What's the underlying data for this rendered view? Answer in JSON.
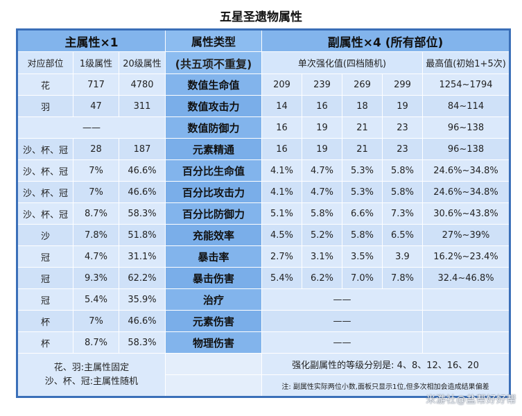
{
  "title": "五星圣遗物属性",
  "header": {
    "main_attr": "主属性×1",
    "type_line1": "属性类型",
    "type_line2": "(共五项不重复)",
    "sub_attr": "副属性×4 (所有部位)",
    "slot": "对应部位",
    "lv1": "1级属性",
    "lv20": "20级属性",
    "single_roll": "单次强化值(四档随机)",
    "max_value": "最高值(初始1+5次)"
  },
  "rows": [
    {
      "slot": "花",
      "lv1": "717",
      "lv20": "4780",
      "name": "数值生命值",
      "r1": "209",
      "r2": "239",
      "r3": "269",
      "r4": "299",
      "max": "1254~1794"
    },
    {
      "slot": "羽",
      "lv1": "47",
      "lv20": "311",
      "name": "数值攻击力",
      "r1": "14",
      "r2": "16",
      "r3": "18",
      "r4": "19",
      "max": "84~114"
    },
    {
      "merged": "——",
      "name": "数值防御力",
      "r1": "16",
      "r2": "19",
      "r3": "21",
      "r4": "23",
      "max": "96~138"
    },
    {
      "slot": "沙、杯、冠",
      "lv1": "28",
      "lv20": "187",
      "name": "元素精通",
      "r1": "16",
      "r2": "19",
      "r3": "21",
      "r4": "23",
      "max": "96~138"
    },
    {
      "slot": "沙、杯、冠",
      "lv1": "7%",
      "lv20": "46.6%",
      "name": "百分比生命值",
      "r1": "4.1%",
      "r2": "4.7%",
      "r3": "5.3%",
      "r4": "5.8%",
      "max": "24.6%~34.8%"
    },
    {
      "slot": "沙、杯、冠",
      "lv1": "7%",
      "lv20": "46.6%",
      "name": "百分比攻击力",
      "r1": "4.1%",
      "r2": "4.7%",
      "r3": "5.3%",
      "r4": "5.8%",
      "max": "24.6%~34.8%"
    },
    {
      "slot": "沙、杯、冠",
      "lv1": "8.7%",
      "lv20": "58.3%",
      "name": "百分比防御力",
      "r1": "5.1%",
      "r2": "5.8%",
      "r3": "6.6%",
      "r4": "7.3%",
      "max": "30.6%~43.8%"
    },
    {
      "slot": "沙",
      "lv1": "7.8%",
      "lv20": "51.8%",
      "name": "充能效率",
      "r1": "4.5%",
      "r2": "5.2%",
      "r3": "5.8%",
      "r4": "6.5%",
      "max": "27%~39%"
    },
    {
      "slot": "冠",
      "lv1": "4.7%",
      "lv20": "31.1%",
      "name": "暴击率",
      "r1": "2.7%",
      "r2": "3.1%",
      "r3": "3.5%",
      "r4": "3.9",
      "max": "16.2%~23.4%"
    },
    {
      "slot": "冠",
      "lv1": "9.3%",
      "lv20": "62.2%",
      "name": "暴击伤害",
      "r1": "5.4%",
      "r2": "6.2%",
      "r3": "7.0%",
      "r4": "7.8%",
      "max": "32.4~46.8%"
    },
    {
      "slot": "冠",
      "lv1": "5.4%",
      "lv20": "35.9%",
      "name": "治疗",
      "subMerged": "——"
    },
    {
      "slot": "杯",
      "lv1": "7%",
      "lv20": "46.6%",
      "name": "元素伤害",
      "subMerged": "——"
    },
    {
      "slot": "杯",
      "lv1": "8.7%",
      "lv20": "58.3%",
      "name": "物理伤害",
      "subMerged": "——"
    }
  ],
  "footer": {
    "left_line1": "花、羽:主属性固定",
    "left_line2": "沙、杯、冠:主属性随机",
    "levels_note": "强化副属性的等级分别是: 4、8、12、16、20",
    "small_note": "注: 副属性实际两位小数,面板只显示1位,但多次相加会造成结果偏差"
  },
  "watermark": "米游社@盐帮好好帮"
}
